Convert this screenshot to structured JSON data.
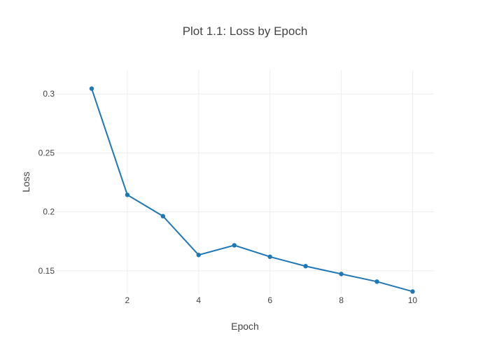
{
  "chart_data": {
    "type": "line",
    "title": "Plot 1.1: Loss by Epoch",
    "xlabel": "Epoch",
    "ylabel": "Loss",
    "x": [
      1,
      2,
      3,
      4,
      5,
      6,
      7,
      8,
      9,
      10
    ],
    "series": [
      {
        "values": [
          0.3045,
          0.2144,
          0.1963,
          0.1634,
          0.1716,
          0.1619,
          0.1539,
          0.1473,
          0.1408,
          0.1324
        ],
        "color": "#1f77b4"
      }
    ],
    "xlim": [
      0.0,
      10.6
    ],
    "ylim": [
      0.1303,
      0.3203
    ],
    "xticks": [
      2,
      4,
      6,
      8,
      10
    ],
    "xtick_labels": [
      "2",
      "4",
      "6",
      "8",
      "10"
    ],
    "yticks": [
      0.15,
      0.2,
      0.25,
      0.3
    ],
    "ytick_labels": [
      "0.15",
      "0.2",
      "0.25",
      "0.3"
    ],
    "grid": true,
    "legend": false
  }
}
